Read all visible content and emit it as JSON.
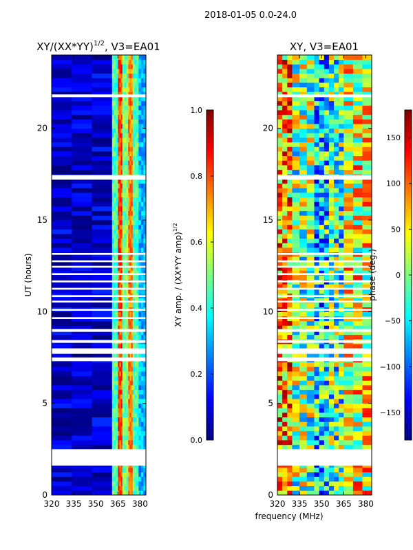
{
  "figure_title": "2018-01-05 0.0-24.0",
  "colors": {
    "jet": [
      "#00007f",
      "#0000ff",
      "#007fff",
      "#00ffff",
      "#7fff7f",
      "#ffff00",
      "#ff7f00",
      "#ff0000",
      "#7f0000"
    ],
    "gap": "#ffffff",
    "axis": "#000000"
  },
  "chart_data": [
    {
      "type": "heatmap",
      "panel": "amplitude",
      "title_main": "XY/(XX*YY)",
      "title_sup": "1/2",
      "title_suffix": ", V3=EA01",
      "xlabel": "",
      "ylabel": "UT (hours)",
      "xlim": [
        320,
        384
      ],
      "ylim": [
        0,
        24
      ],
      "xticks": [
        320,
        335,
        350,
        365,
        380
      ],
      "yticks": [
        0,
        5,
        10,
        15,
        20
      ],
      "colorbar": {
        "label_main": "XY amp. / (XX*YY amp)",
        "label_sup": "1/2",
        "range": [
          0.0,
          1.0
        ],
        "ticks": [
          "0.0",
          "0.2",
          "0.4",
          "0.6",
          "0.8",
          "1.0"
        ]
      },
      "gaps_hours": [
        [
          1.6,
          2.5
        ],
        [
          7.3,
          7.5
        ],
        [
          7.7,
          8.0
        ],
        [
          8.3,
          8.45
        ],
        [
          8.9,
          9.05
        ],
        [
          9.6,
          9.7
        ],
        [
          10.05,
          10.15
        ],
        [
          10.5,
          10.6
        ],
        [
          10.8,
          10.9
        ],
        [
          11.2,
          11.3
        ],
        [
          11.6,
          11.7
        ],
        [
          12.0,
          12.1
        ],
        [
          12.4,
          12.5
        ],
        [
          12.7,
          12.8
        ],
        [
          13.1,
          13.2
        ],
        [
          17.2,
          17.45
        ],
        [
          21.7,
          21.85
        ]
      ],
      "bands_mhz": [
        {
          "from": 320,
          "to": 361,
          "level": 0.08
        },
        {
          "from": 361,
          "to": 365,
          "level": 0.45
        },
        {
          "from": 365,
          "to": 368,
          "level": 0.8
        },
        {
          "from": 368,
          "to": 372,
          "level": 0.5
        },
        {
          "from": 372,
          "to": 375,
          "level": 0.75
        },
        {
          "from": 375,
          "to": 379,
          "level": 0.45
        },
        {
          "from": 379,
          "to": 384,
          "level": 0.3
        }
      ]
    },
    {
      "type": "heatmap",
      "panel": "phase",
      "title_main": "XY, V3=EA01",
      "xlabel": "frequency (MHz)",
      "ylabel": "",
      "xlim": [
        320,
        384
      ],
      "ylim": [
        0,
        24
      ],
      "xticks": [
        320,
        335,
        350,
        365,
        380
      ],
      "yticks": [
        0,
        5,
        10,
        15,
        20
      ],
      "colorbar": {
        "label_main": "phase (deg.)",
        "range": [
          -180,
          180
        ],
        "ticks": [
          "−150",
          "−100",
          "−50",
          "0",
          "50",
          "100",
          "150"
        ]
      },
      "gaps_hours": [
        [
          1.6,
          2.5
        ],
        [
          7.3,
          7.5
        ],
        [
          7.7,
          8.0
        ],
        [
          8.3,
          8.45
        ],
        [
          8.9,
          9.05
        ],
        [
          9.6,
          9.7
        ],
        [
          10.05,
          10.15
        ],
        [
          10.5,
          10.6
        ],
        [
          10.8,
          10.9
        ],
        [
          11.2,
          11.3
        ],
        [
          11.6,
          11.7
        ],
        [
          12.0,
          12.1
        ],
        [
          12.4,
          12.5
        ],
        [
          12.7,
          12.8
        ],
        [
          13.1,
          13.2
        ],
        [
          17.2,
          17.45
        ],
        [
          21.7,
          21.85
        ]
      ],
      "bands_mhz": [
        {
          "from": 320,
          "to": 330,
          "level": 0.7
        },
        {
          "from": 330,
          "to": 345,
          "level": 0.5
        },
        {
          "from": 345,
          "to": 355,
          "level": 0.35
        },
        {
          "from": 355,
          "to": 365,
          "level": 0.45
        },
        {
          "from": 365,
          "to": 384,
          "level": 0.6
        }
      ]
    }
  ]
}
